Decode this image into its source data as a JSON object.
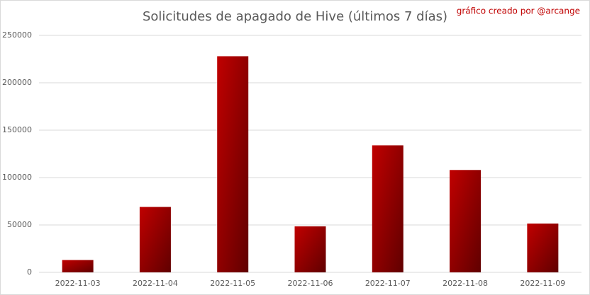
{
  "chart_data": {
    "type": "bar",
    "title": "Solicitudes de apagado de Hive (últimos 7 días)",
    "annotation": "gráfico creado por @arcange",
    "categories": [
      "2022-11-03",
      "2022-11-04",
      "2022-11-05",
      "2022-11-06",
      "2022-11-07",
      "2022-11-08",
      "2022-11-09"
    ],
    "values": [
      13000,
      69000,
      228000,
      48500,
      134000,
      108000,
      51500
    ],
    "color": "#c00000",
    "ylim": [
      0,
      250000
    ],
    "yticks": [
      0,
      50000,
      100000,
      150000,
      200000,
      250000
    ],
    "grid": true
  }
}
